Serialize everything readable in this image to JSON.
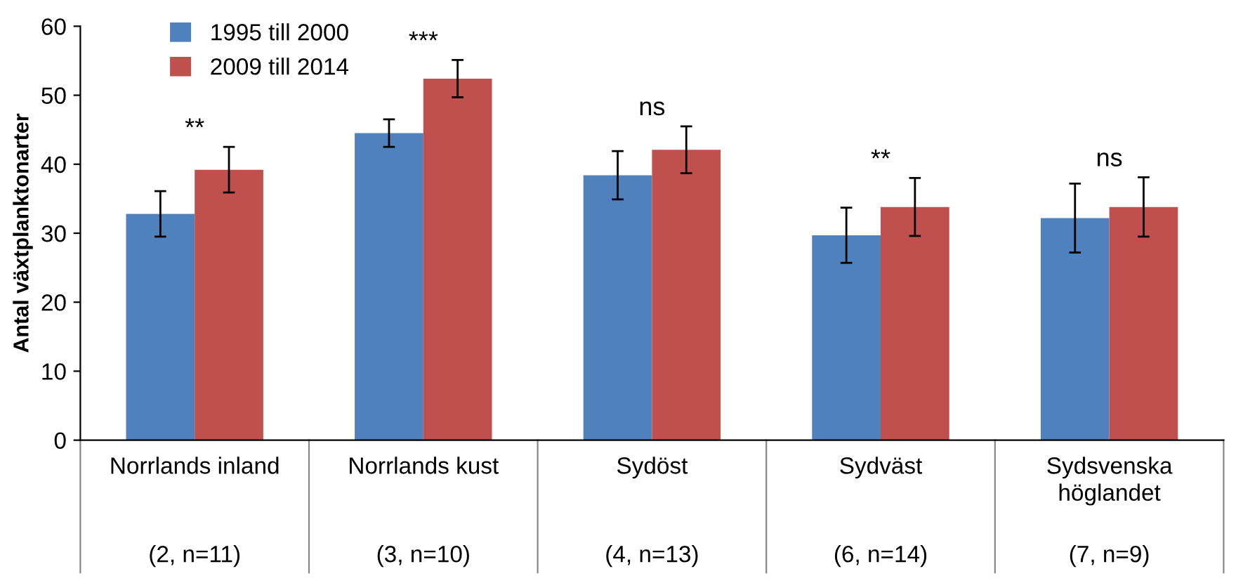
{
  "chart_data": {
    "type": "bar",
    "ylabel": "Antal växtplanktonarter",
    "categories": [
      "Norrlands inland\n(2, n=11)",
      "Norrlands kust\n(3, n=10)",
      "Sydöst\n(4, n=13)",
      "Sydväst\n(6, n=14)",
      "Sydsvenska\nhöglandet\n(7, n=9)"
    ],
    "series": [
      {
        "name": "1995 till 2000",
        "color": "#4f81bd",
        "values": [
          32.8,
          44.5,
          38.4,
          29.7,
          32.2
        ],
        "errors": [
          3.3,
          2,
          3.5,
          4,
          5
        ]
      },
      {
        "name": "2009 till 2014",
        "color": "#c0504d",
        "values": [
          39.2,
          52.4,
          42.1,
          33.8,
          33.8
        ],
        "errors": [
          3.3,
          2.7,
          3.4,
          4.2,
          4.3
        ]
      }
    ],
    "ylim": [
      0,
      60
    ],
    "yticks": [
      0,
      10,
      20,
      30,
      40,
      50,
      60
    ],
    "grid": false,
    "legend": "top left",
    "annotations": [
      "**",
      "***",
      "ns",
      "**",
      "ns"
    ]
  }
}
